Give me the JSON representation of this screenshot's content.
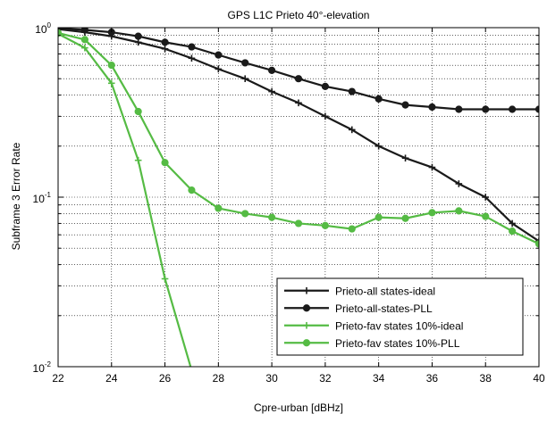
{
  "chart_data": {
    "type": "line",
    "title": "GPS L1C Prieto 40°-elevation",
    "xlabel": "Cpre-urban [dBHz]",
    "ylabel": "Subframe 3 Error Rate",
    "xlim": [
      22,
      40
    ],
    "ylim": [
      0.01,
      1
    ],
    "yscale": "log",
    "grid": true,
    "legend_position": "bottom-right",
    "xticks": [
      "22",
      "24",
      "26",
      "28",
      "30",
      "32",
      "34",
      "36",
      "38",
      "40"
    ],
    "yticks": [
      {
        "base": "10",
        "exp": "0"
      },
      {
        "base": "10",
        "exp": "-1"
      },
      {
        "base": "10",
        "exp": "-2"
      }
    ],
    "series": [
      {
        "name": "Prieto-all states-ideal",
        "color": "#1a1a1a",
        "marker": "plus",
        "x": [
          22,
          23,
          24,
          25,
          26,
          27,
          28,
          29,
          30,
          31,
          32,
          33,
          34,
          35,
          36,
          37,
          38,
          39,
          40
        ],
        "y": [
          0.98,
          0.94,
          0.89,
          0.82,
          0.75,
          0.66,
          0.57,
          0.5,
          0.42,
          0.36,
          0.3,
          0.25,
          0.2,
          0.17,
          0.15,
          0.12,
          0.1,
          0.07,
          0.055
        ]
      },
      {
        "name": "Prieto-all-states-PLL",
        "color": "#1a1a1a",
        "marker": "dot",
        "x": [
          22,
          23,
          24,
          25,
          26,
          27,
          28,
          29,
          30,
          31,
          32,
          33,
          34,
          35,
          36,
          37,
          38,
          39,
          40
        ],
        "y": [
          0.99,
          0.97,
          0.94,
          0.89,
          0.82,
          0.77,
          0.69,
          0.62,
          0.56,
          0.5,
          0.45,
          0.42,
          0.38,
          0.35,
          0.34,
          0.33,
          0.33,
          0.33,
          0.33
        ]
      },
      {
        "name": "Prieto-fav states 10%-ideal",
        "color": "#55bb44",
        "marker": "plus",
        "x": [
          22,
          23,
          24,
          25,
          26,
          27
        ],
        "y": [
          0.92,
          0.76,
          0.47,
          0.165,
          0.033,
          0.0095
        ]
      },
      {
        "name": "Prieto-fav states 10%-PLL",
        "color": "#55bb44",
        "marker": "dot",
        "x": [
          22,
          23,
          24,
          25,
          26,
          27,
          28,
          29,
          30,
          31,
          32,
          33,
          34,
          35,
          36,
          37,
          38,
          39,
          40
        ],
        "y": [
          0.93,
          0.85,
          0.6,
          0.32,
          0.16,
          0.11,
          0.086,
          0.08,
          0.076,
          0.07,
          0.068,
          0.065,
          0.076,
          0.075,
          0.081,
          0.083,
          0.077,
          0.063,
          0.053
        ]
      }
    ]
  }
}
